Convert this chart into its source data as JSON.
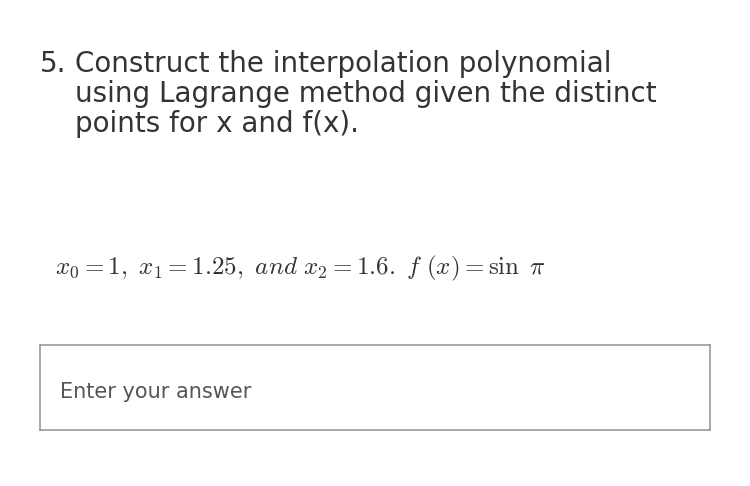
{
  "background_color": "#ffffff",
  "question_number": "5.",
  "title_line1": "Construct the interpolation polynomial",
  "title_line2": "using Lagrange method given the distinct",
  "title_line3": "points for x and f(x).",
  "answer_placeholder": "Enter your answer",
  "text_color": "#333333",
  "box_edge_color": "#999999",
  "answer_text_color": "#555555",
  "title_fontsize": 20,
  "math_fontsize": 18,
  "answer_fontsize": 15,
  "fig_width": 7.5,
  "fig_height": 4.86,
  "dpi": 100
}
